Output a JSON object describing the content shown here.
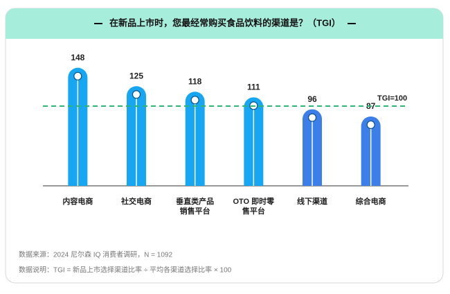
{
  "chart_data": {
    "type": "bar",
    "title": "在新品上市时，您最经常购买食品饮料的渠道是？（TGI）",
    "categories": [
      "内容电商",
      "社交电商",
      "垂直类产品\n销售平台",
      "OTO 即时零\n售平台",
      "线下渠道",
      "综合电商"
    ],
    "values": [
      148,
      125,
      118,
      111,
      96,
      87
    ],
    "colors": [
      "#17a6f2",
      "#17a6f2",
      "#17a6f2",
      "#17a6f2",
      "#3d7fe9",
      "#3d7fe9"
    ],
    "ylim": [
      0,
      160
    ],
    "reference": {
      "value": 100,
      "label": "TGI=100",
      "color": "#2bb673"
    },
    "notes": [
      "数据来源：2024 尼尔森 IQ 消费者调研，N = 1092",
      "数据说明：TGI = 新品上市选择渠道比率 ÷ 平均各渠道选择比率 × 100"
    ]
  }
}
